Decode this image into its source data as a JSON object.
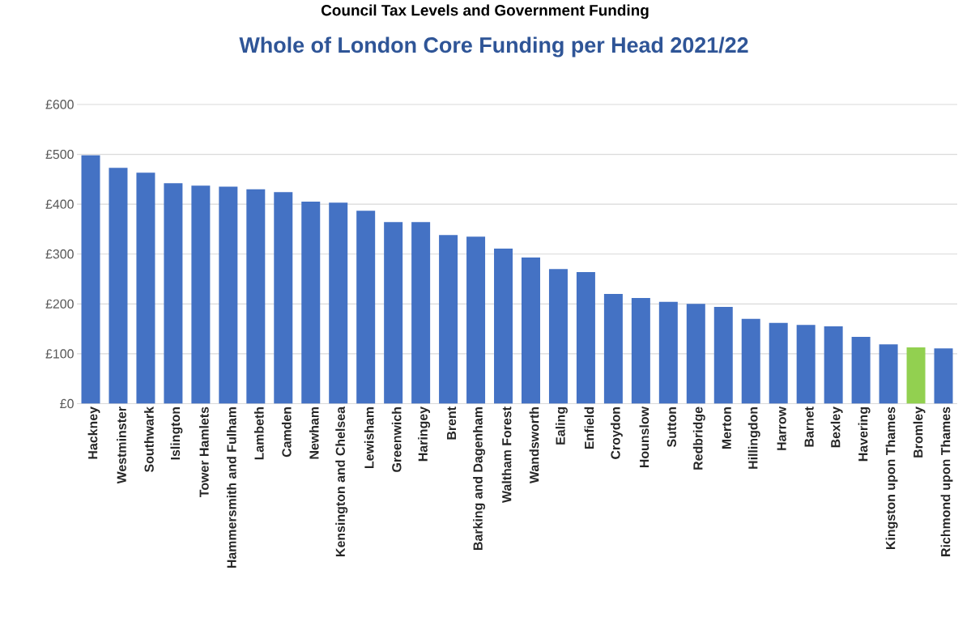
{
  "chart_data": {
    "type": "bar",
    "title": "Whole of London Core Funding per Head 2021/22",
    "annotations": [
      "Council Tax Levels and Government Funding"
    ],
    "categories": [
      "Hackney",
      "Westminster",
      "Southwark",
      "Islington",
      "Tower Hamlets",
      "Hammersmith and Fulham",
      "Lambeth",
      "Camden",
      "Newham",
      "Kensington and Chelsea",
      "Lewisham",
      "Greenwich",
      "Haringey",
      "Brent",
      "Barking and Dagenham",
      "Waltham Forest",
      "Wandsworth",
      "Ealing",
      "Enfield",
      "Croydon",
      "Hounslow",
      "Sutton",
      "Redbridge",
      "Merton",
      "Hillingdon",
      "Harrow",
      "Barnet",
      "Bexley",
      "Havering",
      "Kingston upon Thames",
      "Bromley",
      "Richmond upon Thames"
    ],
    "values": [
      498,
      473,
      463,
      442,
      437,
      435,
      430,
      424,
      405,
      403,
      387,
      364,
      364,
      338,
      335,
      311,
      293,
      270,
      264,
      220,
      212,
      204,
      200,
      194,
      170,
      162,
      158,
      155,
      134,
      119,
      113,
      111
    ],
    "colors": [
      "#4472c4",
      "#4472c4",
      "#4472c4",
      "#4472c4",
      "#4472c4",
      "#4472c4",
      "#4472c4",
      "#4472c4",
      "#4472c4",
      "#4472c4",
      "#4472c4",
      "#4472c4",
      "#4472c4",
      "#4472c4",
      "#4472c4",
      "#4472c4",
      "#4472c4",
      "#4472c4",
      "#4472c4",
      "#4472c4",
      "#4472c4",
      "#4472c4",
      "#4472c4",
      "#4472c4",
      "#4472c4",
      "#4472c4",
      "#4472c4",
      "#4472c4",
      "#4472c4",
      "#4472c4",
      "#92d050",
      "#4472c4"
    ],
    "ylim": [
      0,
      600
    ],
    "yticks": [
      {
        "value": 0,
        "label": "£0"
      },
      {
        "value": 100,
        "label": "£100"
      },
      {
        "value": 200,
        "label": "£200"
      },
      {
        "value": 300,
        "label": "£300"
      },
      {
        "value": 400,
        "label": "£400"
      },
      {
        "value": 500,
        "label": "£500"
      },
      {
        "value": 600,
        "label": "£600"
      }
    ],
    "grid": "y"
  }
}
